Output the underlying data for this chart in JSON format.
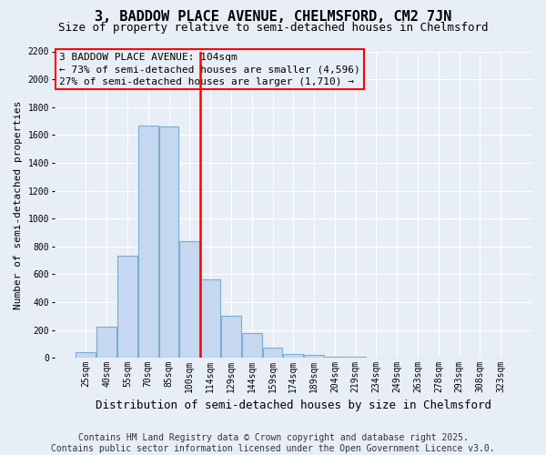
{
  "title": "3, BADDOW PLACE AVENUE, CHELMSFORD, CM2 7JN",
  "subtitle": "Size of property relative to semi-detached houses in Chelmsford",
  "xlabel": "Distribution of semi-detached houses by size in Chelmsford",
  "ylabel": "Number of semi-detached properties",
  "categories": [
    "25sqm",
    "40sqm",
    "55sqm",
    "70sqm",
    "85sqm",
    "100sqm",
    "114sqm",
    "129sqm",
    "144sqm",
    "159sqm",
    "174sqm",
    "189sqm",
    "204sqm",
    "219sqm",
    "234sqm",
    "249sqm",
    "263sqm",
    "278sqm",
    "293sqm",
    "308sqm",
    "323sqm"
  ],
  "values": [
    40,
    220,
    730,
    1670,
    1660,
    840,
    560,
    300,
    180,
    70,
    30,
    20,
    10,
    5,
    0,
    0,
    0,
    0,
    0,
    0,
    0
  ],
  "bar_color": "#c5d8ef",
  "bar_edge_color": "#7aadd4",
  "property_line_x": 5.5,
  "annotation_text": "3 BADDOW PLACE AVENUE: 104sqm\n← 73% of semi-detached houses are smaller (4,596)\n27% of semi-detached houses are larger (1,710) →",
  "ylim": [
    0,
    2200
  ],
  "yticks": [
    0,
    200,
    400,
    600,
    800,
    1000,
    1200,
    1400,
    1600,
    1800,
    2000,
    2200
  ],
  "footer": "Contains HM Land Registry data © Crown copyright and database right 2025.\nContains public sector information licensed under the Open Government Licence v3.0.",
  "background_color": "#e8eef5",
  "grid_color": "#ffffff",
  "title_fontsize": 11,
  "subtitle_fontsize": 9,
  "ylabel_fontsize": 8,
  "xlabel_fontsize": 9,
  "tick_fontsize": 7,
  "annotation_fontsize": 8,
  "footer_fontsize": 7
}
